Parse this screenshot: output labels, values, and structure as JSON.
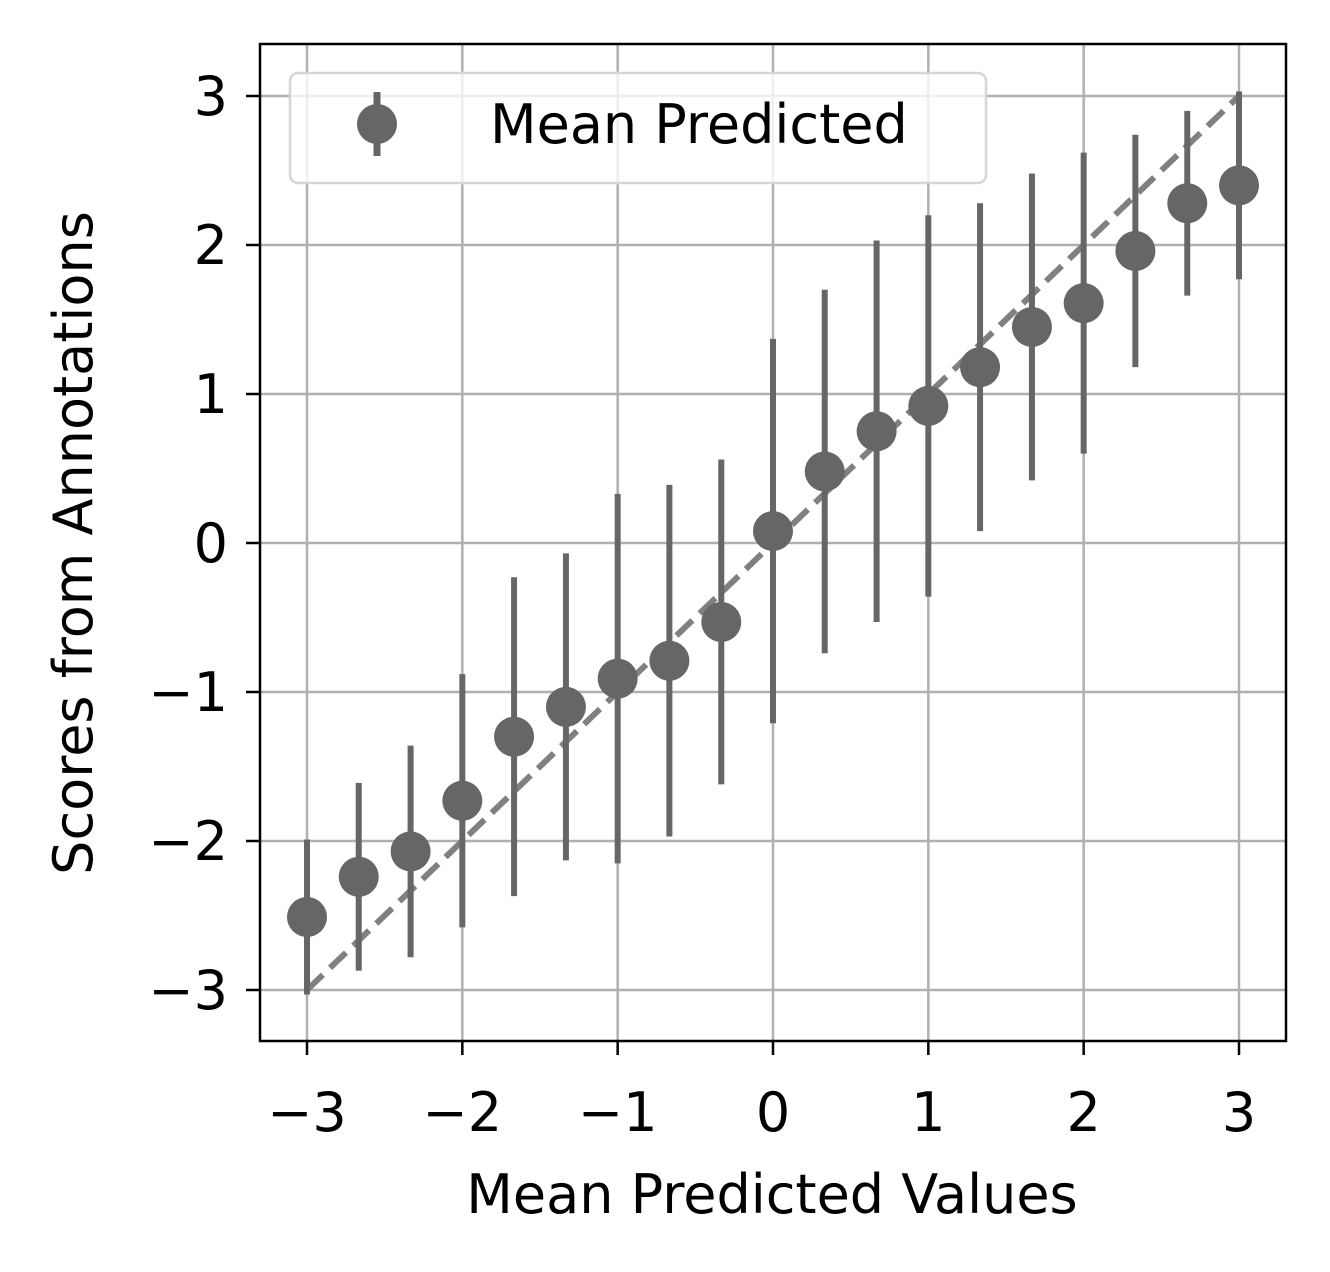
{
  "chart_data": {
    "type": "scatter",
    "title": "",
    "xlabel": "Mean Predicted Values",
    "ylabel": "Scores from Annotations",
    "xlim": [
      -3.3,
      3.3
    ],
    "ylim": [
      -3.33,
      3.35
    ],
    "xticks": [
      -3,
      -2,
      -1,
      0,
      1,
      2,
      3
    ],
    "yticks": [
      -3,
      -2,
      -1,
      0,
      1,
      2,
      3
    ],
    "xtick_labels": [
      "−3",
      "−2",
      "−1",
      "0",
      "1",
      "2",
      "3"
    ],
    "ytick_labels": [
      "−3",
      "−2",
      "−1",
      "0",
      "1",
      "2",
      "3"
    ],
    "grid": true,
    "legend": {
      "placement": "upper-left",
      "entries": [
        "Mean Predicted"
      ]
    },
    "reference_line": {
      "style": "dashed",
      "from": [
        -3,
        -3
      ],
      "to": [
        3,
        3
      ],
      "color": "#808080"
    },
    "series": [
      {
        "name": "Mean Predicted",
        "color": "#666666",
        "x": [
          -3.0,
          -2.667,
          -2.333,
          -2.0,
          -1.667,
          -1.333,
          -1.0,
          -0.667,
          -0.333,
          0.0,
          0.333,
          0.667,
          1.0,
          1.333,
          1.667,
          2.0,
          2.333,
          2.667,
          3.0
        ],
        "y": [
          -2.51,
          -2.24,
          -2.07,
          -1.73,
          -1.3,
          -1.1,
          -0.91,
          -0.79,
          -0.53,
          0.08,
          0.48,
          0.75,
          0.92,
          1.18,
          1.45,
          1.61,
          1.96,
          2.28,
          2.4
        ],
        "yerr": [
          0.52,
          0.63,
          0.71,
          0.85,
          1.07,
          1.03,
          1.24,
          1.18,
          1.09,
          1.29,
          1.22,
          1.28,
          1.28,
          1.1,
          1.03,
          1.01,
          0.78,
          0.62,
          0.63
        ]
      }
    ]
  }
}
